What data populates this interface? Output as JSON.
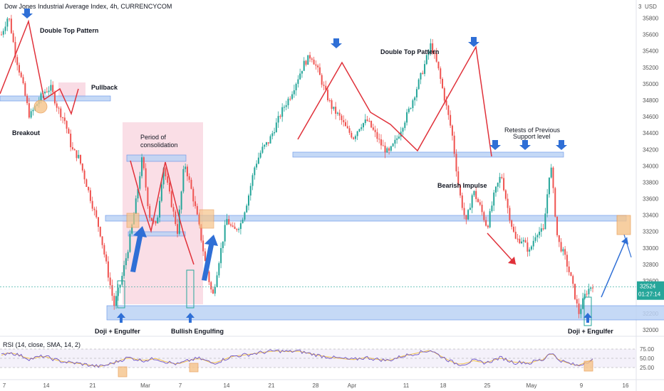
{
  "header": {
    "title": "Dow Jones Industrial Average Index, 4h, CURRENCYCOM"
  },
  "axis_top": {
    "usd_label": "USD",
    "scale_btn": "3"
  },
  "price_badge": {
    "price": "32524",
    "timer": "01:27:14",
    "color": "#26a69a"
  },
  "colors": {
    "up": "#26a69a",
    "down": "#ef5350",
    "support_zone": "#bcd3f5",
    "support_border": "#5b8ee6",
    "consolidation": "#f8d3de",
    "pattern_line": "#e0313a",
    "arrow": "#2f6fd6",
    "rsi_line": "#6e54c7",
    "rsi_ma": "#f2c24a"
  },
  "annotations": {
    "double_top_left": "Double Top Pattern",
    "double_top_right": "Double Top Pattern",
    "pullback": "Pullback",
    "breakout": "Breakout",
    "consolidation_1": "Period of",
    "consolidation_2": "consolidation",
    "bearish": "Bearish Impulse",
    "retests_1": "Retests of Previous",
    "retests_2": "Support level",
    "doji_left": "Doji + Engulfer",
    "bullish_engulfing": "Bullish Engulfing",
    "doji_right": "Doji + Engulfer"
  },
  "rsi": {
    "label": "RSI (14, close, SMA, 14, 2)",
    "ticks": [
      "75.00",
      "50.00",
      "25.00"
    ],
    "levels": [
      75,
      50,
      25
    ]
  },
  "chart_data": {
    "type": "candlestick",
    "title": "Dow Jones Industrial Average Index, 4h, CURRENCYCOM",
    "y_ticks": [
      32000,
      32200,
      32400,
      32600,
      32800,
      33000,
      33200,
      33400,
      33600,
      33800,
      34000,
      34200,
      34400,
      34600,
      34800,
      35000,
      35200,
      35400,
      35600,
      35800
    ],
    "ylim": [
      31950,
      35900
    ],
    "x_ticks": [
      "7",
      "14",
      "21",
      "Mar",
      "7",
      "14",
      "21",
      "28",
      "Apr",
      "11",
      "18",
      "25",
      "May",
      "9",
      "16"
    ],
    "trend_path": [
      35600,
      35840,
      35350,
      35000,
      34600,
      34750,
      34900,
      34950,
      34700,
      34550,
      34200,
      34100,
      33800,
      33500,
      33200,
      32750,
      32300,
      32600,
      33000,
      33500,
      34100,
      33400,
      33250,
      34000,
      33600,
      33200,
      34050,
      33700,
      33300,
      32800,
      32400,
      32900,
      33350,
      33200,
      33300,
      33600,
      34000,
      34200,
      34300,
      34500,
      34700,
      34850,
      35050,
      35250,
      35350,
      35150,
      34900,
      34700,
      34600,
      34450,
      34350,
      34500,
      34550,
      34400,
      34250,
      34150,
      34300,
      34500,
      34700,
      34950,
      35200,
      35480,
      35200,
      34800,
      34400,
      33700,
      33300,
      33700,
      33500,
      33250,
      33650,
      33900,
      33450,
      33100,
      33100,
      32950,
      33200,
      33200,
      34050,
      33100,
      32900,
      32600,
      32200,
      32450,
      32560
    ],
    "support_zones": [
      {
        "from": 32100,
        "to": 32270
      },
      {
        "from": 33300,
        "to": 33380
      },
      {
        "from": 34150,
        "to": 34210
      },
      {
        "from": 34820,
        "to": 34880
      },
      {
        "from": 33240,
        "to": 33300
      },
      {
        "from": 34060,
        "to": 34140
      }
    ],
    "double_top_left": [
      35500,
      35830,
      35300
    ],
    "double_top_right": [
      34550,
      35350,
      34180,
      35500,
      34150
    ],
    "rsi_series": [
      58,
      66,
      62,
      55,
      48,
      52,
      56,
      50,
      44,
      40,
      38,
      36,
      33,
      30,
      28,
      32,
      38,
      45,
      52,
      48,
      44,
      46,
      50,
      42,
      38,
      34,
      40,
      46,
      50,
      44,
      36,
      42,
      50,
      56,
      58,
      60,
      63,
      66,
      68,
      70,
      69,
      68,
      70,
      66,
      62,
      58,
      55,
      52,
      50,
      48,
      46,
      50,
      52,
      48,
      46,
      44,
      50,
      56,
      60,
      64,
      68,
      72,
      60,
      50,
      40,
      34,
      36,
      44,
      40,
      38,
      46,
      52,
      44,
      38,
      40,
      36,
      44,
      46,
      68,
      48,
      40,
      34,
      30,
      40,
      46
    ]
  }
}
